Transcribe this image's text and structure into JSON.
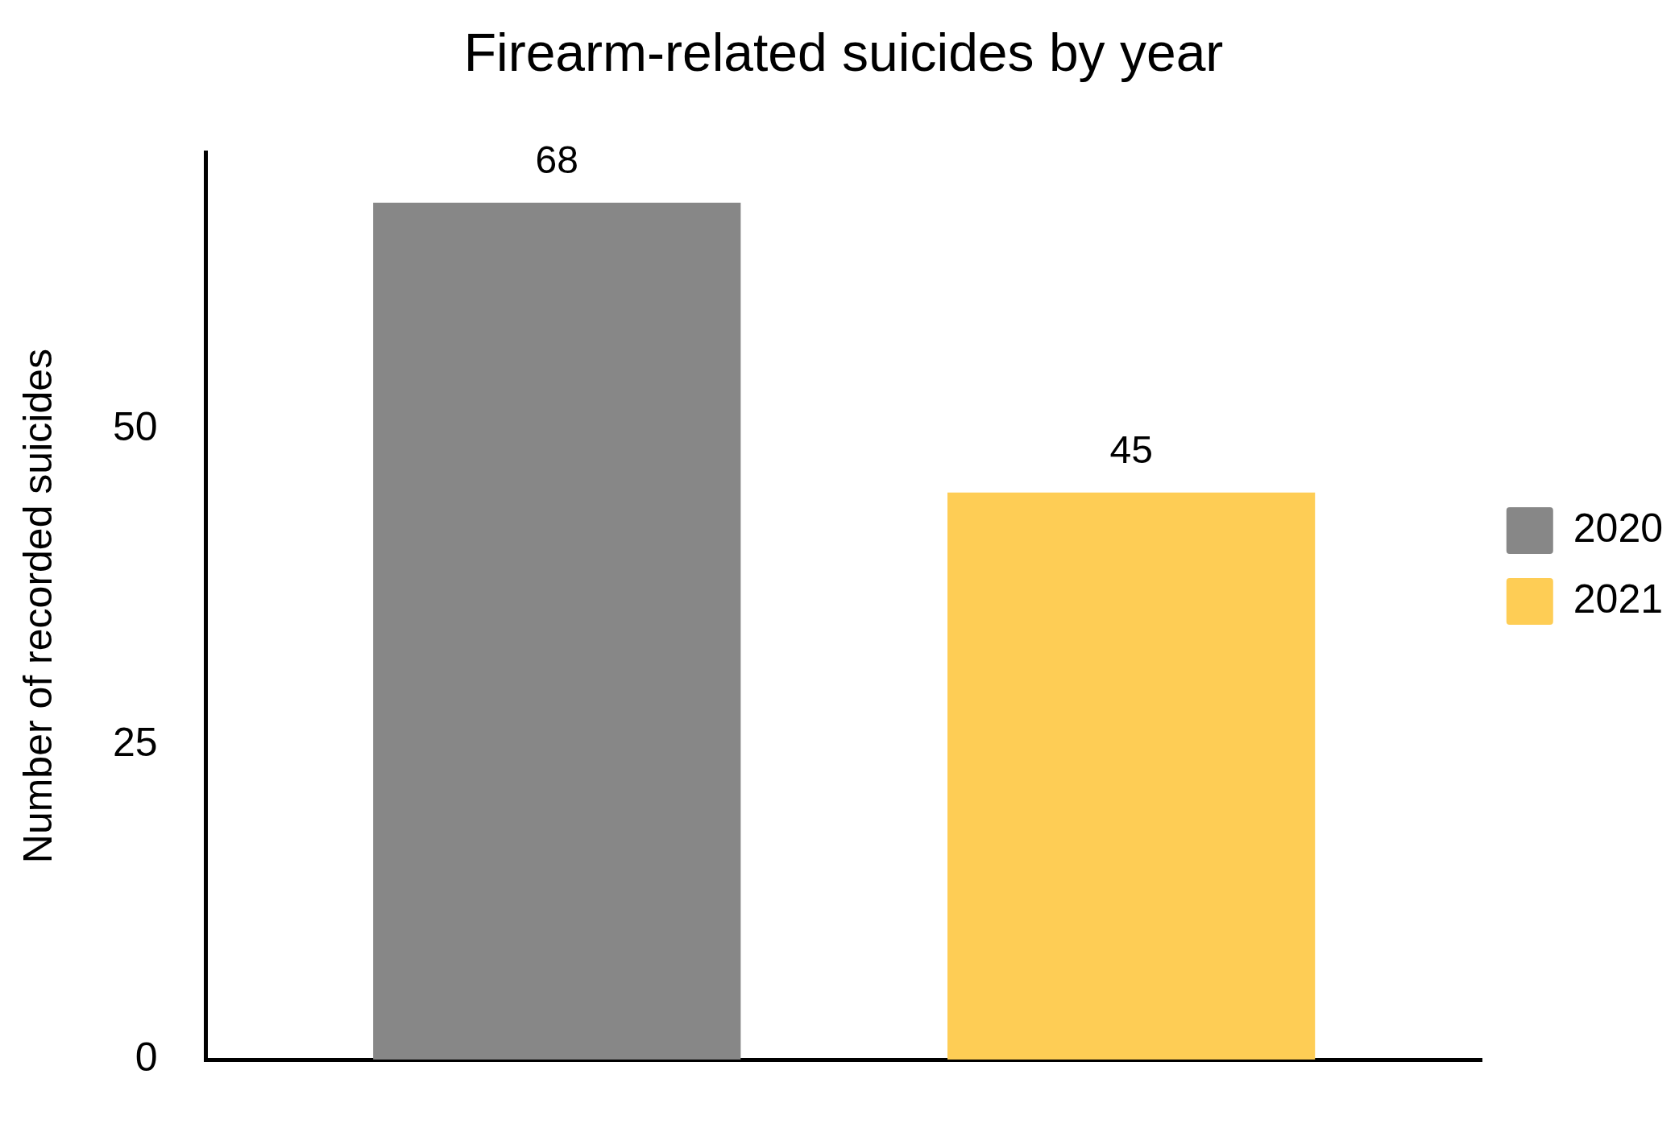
{
  "chart_data": {
    "type": "bar",
    "title": "Firearm-related suicides by year",
    "ylabel": "Number of recorded suicides",
    "categories": [
      null
    ],
    "series": [
      {
        "name": "2020",
        "color": "#878787",
        "values": [
          68
        ]
      },
      {
        "name": "2021",
        "color": "#fecd55",
        "values": [
          45
        ]
      }
    ],
    "ylim": [
      0,
      72
    ],
    "yticks": [
      0,
      25,
      50
    ],
    "grid": false,
    "legend": "right",
    "data_labels": true
  }
}
